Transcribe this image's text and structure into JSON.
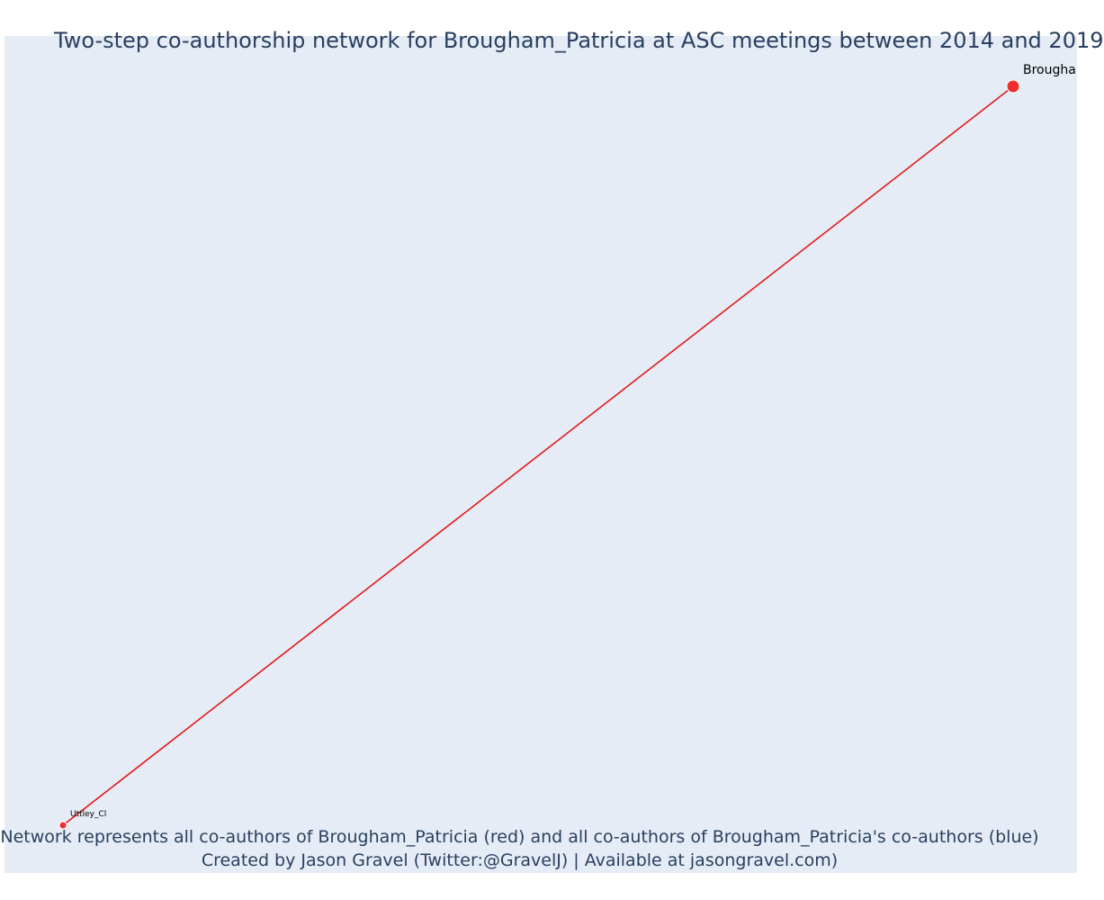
{
  "title": "Two-step co-authorship network for Brougham_Patricia at ASC meetings between 2014 and 2019",
  "footnote": {
    "line1": "Network represents all co-authors of Brougham_Patricia (red) and all co-authors of Brougham_Patricia's co-authors (blue)",
    "line2": "Created by Jason Gravel (Twitter:@GravelJ) | Available at jasongravel.com)"
  },
  "network": {
    "nodes": [
      {
        "id": "brougham",
        "label": "Brougha",
        "color": "#ef2f2f",
        "role": "focal"
      },
      {
        "id": "uttley",
        "label": "Uttley_Cl",
        "color": "#ef2f2f",
        "role": "co-author"
      }
    ],
    "edges": [
      {
        "from": "brougham",
        "to": "uttley",
        "color": "#e41a1c"
      }
    ]
  },
  "colors": {
    "plot_background": "#e5ecf6",
    "text": "#2a3f5f",
    "coauthor_node": "#ef2f2f",
    "edge": "#e41a1c"
  }
}
